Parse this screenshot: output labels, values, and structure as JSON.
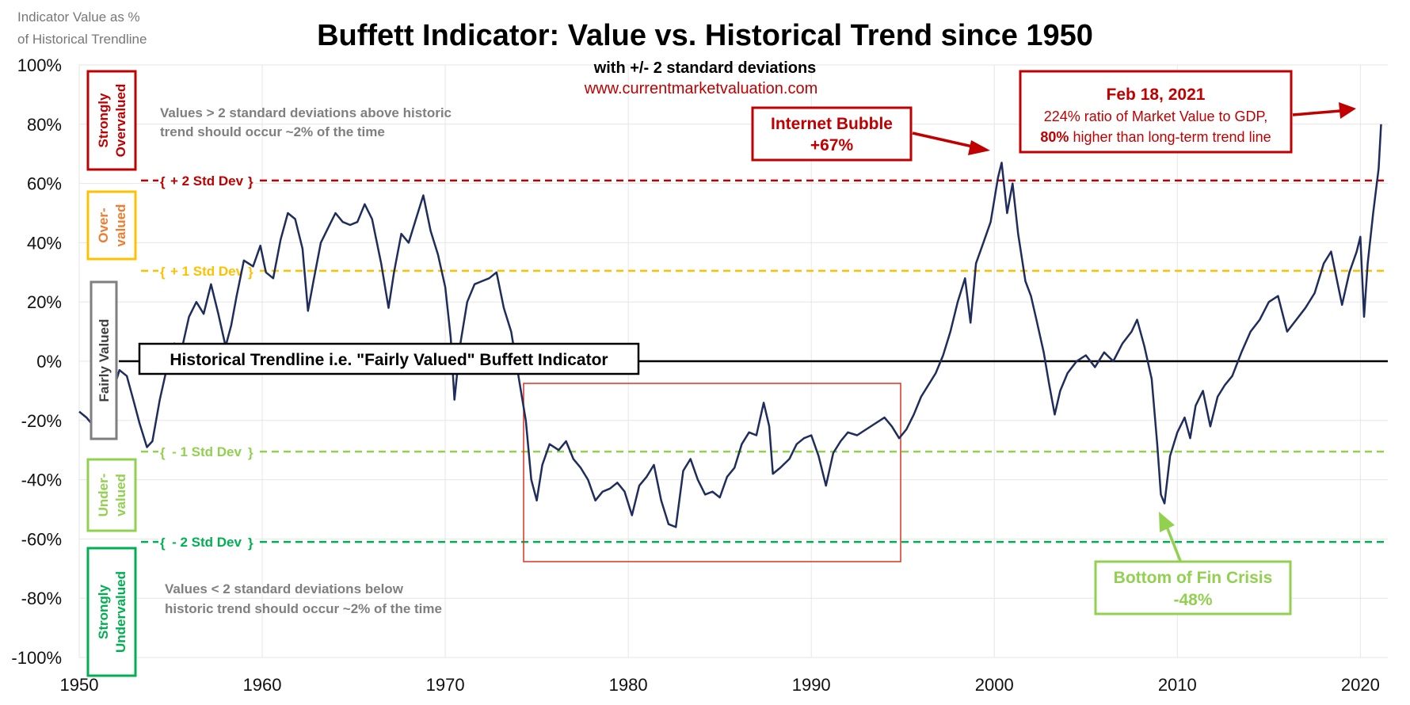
{
  "title": "Buffett Indicator: Value vs. Historical Trend since 1950",
  "subtitle": "with +/- 2 standard deviations",
  "website": "www.currentmarketvaluation.com",
  "y_axis_title": [
    "Indicator Value as %",
    "of Historical Trendline"
  ],
  "notes": {
    "above": [
      "Values > 2 standard deviations above historic",
      "trend should occur ~2% of the time"
    ],
    "below": [
      "Values < 2 standard deviations below",
      "historic trend should occur ~2% of the time"
    ]
  },
  "std_lines": [
    {
      "label": "+ 2 Std Dev",
      "value": 61,
      "color": "#c00000"
    },
    {
      "label": "+ 1 Std Dev",
      "value": 30.5,
      "color": "#ffc000"
    },
    {
      "label": "- 1 Std Dev",
      "value": -30.5,
      "color": "#92d050"
    },
    {
      "label": "- 2 Std Dev",
      "value": -61,
      "color": "#00b050"
    }
  ],
  "zones": [
    {
      "label": [
        "Strongly",
        "Overvalued"
      ],
      "color": "#c00000"
    },
    {
      "label": [
        "Over-",
        "valued"
      ],
      "color": "#ffc000",
      "text_color": "#ed7d31"
    },
    {
      "label": [
        "Fairly Valued"
      ],
      "color": "#7f7f7f",
      "text_color": "#404040"
    },
    {
      "label": [
        "Under-",
        "valued"
      ],
      "color": "#92d050"
    },
    {
      "label": [
        "Strongly",
        "Undervalued"
      ],
      "color": "#00b050"
    }
  ],
  "trendline_label": "Historical Trendline i.e. \"Fairly Valued\" Buffett Indicator",
  "callouts": {
    "internet": {
      "title": "Internet Bubble",
      "value": "+67%",
      "color": "#c00000"
    },
    "feb2021": {
      "title": "Feb 18, 2021",
      "line1": "224% ratio of Market Value to GDP,",
      "bold": "80%",
      "line2": " higher than long-term trend line",
      "color": "#c00000"
    },
    "fincrisis": {
      "title": "Bottom of Fin Crisis",
      "value": "-48%",
      "color": "#92d050"
    }
  },
  "colors": {
    "series": "#1f2d5c",
    "grid": "#e6e6e6",
    "highlight_box": "#e03020"
  },
  "chart_data": {
    "type": "line",
    "title": "Buffett Indicator: Value vs. Historical Trend since 1950",
    "ylabel": "Indicator Value as % of Historical Trendline",
    "xlim": [
      1950,
      2021.5
    ],
    "ylim": [
      -100,
      100
    ],
    "x_ticks": [
      1950,
      1960,
      1970,
      1980,
      1990,
      2000,
      2010,
      2020
    ],
    "y_ticks": [
      "100%",
      "80%",
      "60%",
      "40%",
      "20%",
      "0%",
      "-20%",
      "-40%",
      "-60%",
      "-80%",
      "-100%"
    ],
    "grid": true,
    "series": [
      {
        "values": [
          [
            1950.0,
            -17
          ],
          [
            1950.4,
            -19
          ],
          [
            1950.8,
            -22
          ],
          [
            1951.1,
            -14
          ],
          [
            1951.5,
            -9
          ],
          [
            1951.8,
            -11
          ],
          [
            1952.2,
            -3
          ],
          [
            1952.6,
            -5
          ],
          [
            1953.0,
            -14
          ],
          [
            1953.3,
            -21
          ],
          [
            1953.7,
            -29
          ],
          [
            1954.0,
            -27
          ],
          [
            1954.4,
            -13
          ],
          [
            1954.8,
            -2
          ],
          [
            1955.2,
            6
          ],
          [
            1955.6,
            4
          ],
          [
            1956.0,
            15
          ],
          [
            1956.4,
            20
          ],
          [
            1956.8,
            16
          ],
          [
            1957.2,
            26
          ],
          [
            1957.6,
            16
          ],
          [
            1958.0,
            5
          ],
          [
            1958.3,
            12
          ],
          [
            1958.6,
            22
          ],
          [
            1959.0,
            34
          ],
          [
            1959.5,
            32
          ],
          [
            1959.9,
            39
          ],
          [
            1960.2,
            30
          ],
          [
            1960.6,
            28
          ],
          [
            1961.0,
            41
          ],
          [
            1961.4,
            50
          ],
          [
            1961.8,
            48
          ],
          [
            1962.2,
            38
          ],
          [
            1962.5,
            17
          ],
          [
            1962.8,
            27
          ],
          [
            1963.2,
            40
          ],
          [
            1963.6,
            45
          ],
          [
            1964.0,
            50
          ],
          [
            1964.4,
            47
          ],
          [
            1964.8,
            46
          ],
          [
            1965.2,
            47
          ],
          [
            1965.6,
            53
          ],
          [
            1966.0,
            48
          ],
          [
            1966.5,
            33
          ],
          [
            1966.9,
            18
          ],
          [
            1967.2,
            30
          ],
          [
            1967.6,
            43
          ],
          [
            1968.0,
            40
          ],
          [
            1968.4,
            48
          ],
          [
            1968.8,
            56
          ],
          [
            1969.2,
            44
          ],
          [
            1969.6,
            36
          ],
          [
            1970.0,
            25
          ],
          [
            1970.3,
            8
          ],
          [
            1970.5,
            -13
          ],
          [
            1970.8,
            5
          ],
          [
            1971.2,
            20
          ],
          [
            1971.6,
            26
          ],
          [
            1972.0,
            27
          ],
          [
            1972.4,
            28
          ],
          [
            1972.8,
            30
          ],
          [
            1973.2,
            18
          ],
          [
            1973.6,
            10
          ],
          [
            1974.0,
            -5
          ],
          [
            1974.4,
            -20
          ],
          [
            1974.7,
            -40
          ],
          [
            1975.0,
            -47
          ],
          [
            1975.3,
            -35
          ],
          [
            1975.7,
            -28
          ],
          [
            1976.2,
            -30
          ],
          [
            1976.6,
            -27
          ],
          [
            1977.0,
            -33
          ],
          [
            1977.4,
            -36
          ],
          [
            1977.8,
            -40
          ],
          [
            1978.2,
            -47
          ],
          [
            1978.6,
            -44
          ],
          [
            1979.0,
            -43
          ],
          [
            1979.4,
            -41
          ],
          [
            1979.8,
            -44
          ],
          [
            1980.2,
            -52
          ],
          [
            1980.6,
            -42
          ],
          [
            1981.0,
            -39
          ],
          [
            1981.4,
            -35
          ],
          [
            1981.8,
            -47
          ],
          [
            1982.2,
            -55
          ],
          [
            1982.6,
            -56
          ],
          [
            1983.0,
            -37
          ],
          [
            1983.4,
            -33
          ],
          [
            1983.8,
            -40
          ],
          [
            1984.2,
            -45
          ],
          [
            1984.6,
            -44
          ],
          [
            1985.0,
            -46
          ],
          [
            1985.4,
            -39
          ],
          [
            1985.8,
            -36
          ],
          [
            1986.2,
            -28
          ],
          [
            1986.6,
            -24
          ],
          [
            1987.0,
            -25
          ],
          [
            1987.4,
            -14
          ],
          [
            1987.7,
            -22
          ],
          [
            1987.9,
            -38
          ],
          [
            1988.3,
            -36
          ],
          [
            1988.8,
            -33
          ],
          [
            1989.2,
            -28
          ],
          [
            1989.6,
            -26
          ],
          [
            1990.0,
            -25
          ],
          [
            1990.4,
            -32
          ],
          [
            1990.8,
            -42
          ],
          [
            1991.2,
            -31
          ],
          [
            1991.6,
            -27
          ],
          [
            1992.0,
            -24
          ],
          [
            1992.5,
            -25
          ],
          [
            1993.0,
            -23
          ],
          [
            1993.5,
            -21
          ],
          [
            1994.0,
            -19
          ],
          [
            1994.4,
            -22
          ],
          [
            1994.8,
            -26
          ],
          [
            1995.2,
            -23
          ],
          [
            1995.6,
            -18
          ],
          [
            1996.0,
            -12
          ],
          [
            1996.4,
            -8
          ],
          [
            1996.8,
            -4
          ],
          [
            1997.2,
            2
          ],
          [
            1997.6,
            10
          ],
          [
            1998.0,
            20
          ],
          [
            1998.4,
            28
          ],
          [
            1998.7,
            13
          ],
          [
            1999.0,
            33
          ],
          [
            1999.4,
            40
          ],
          [
            1999.8,
            47
          ],
          [
            2000.2,
            62
          ],
          [
            2000.4,
            67
          ],
          [
            2000.7,
            50
          ],
          [
            2001.0,
            60
          ],
          [
            2001.3,
            43
          ],
          [
            2001.7,
            27
          ],
          [
            2002.0,
            22
          ],
          [
            2002.3,
            14
          ],
          [
            2002.7,
            3
          ],
          [
            2003.0,
            -8
          ],
          [
            2003.3,
            -18
          ],
          [
            2003.6,
            -10
          ],
          [
            2004.0,
            -4
          ],
          [
            2004.5,
            0
          ],
          [
            2005.0,
            2
          ],
          [
            2005.5,
            -2
          ],
          [
            2006.0,
            3
          ],
          [
            2006.5,
            0
          ],
          [
            2007.0,
            6
          ],
          [
            2007.5,
            10
          ],
          [
            2007.8,
            14
          ],
          [
            2008.2,
            5
          ],
          [
            2008.6,
            -6
          ],
          [
            2008.9,
            -28
          ],
          [
            2009.1,
            -45
          ],
          [
            2009.3,
            -48
          ],
          [
            2009.6,
            -32
          ],
          [
            2010.0,
            -24
          ],
          [
            2010.4,
            -19
          ],
          [
            2010.7,
            -26
          ],
          [
            2011.0,
            -15
          ],
          [
            2011.4,
            -10
          ],
          [
            2011.8,
            -22
          ],
          [
            2012.2,
            -12
          ],
          [
            2012.6,
            -8
          ],
          [
            2013.0,
            -5
          ],
          [
            2013.5,
            3
          ],
          [
            2014.0,
            10
          ],
          [
            2014.5,
            14
          ],
          [
            2015.0,
            20
          ],
          [
            2015.5,
            22
          ],
          [
            2016.0,
            10
          ],
          [
            2016.5,
            14
          ],
          [
            2017.0,
            18
          ],
          [
            2017.5,
            23
          ],
          [
            2018.0,
            33
          ],
          [
            2018.4,
            37
          ],
          [
            2018.8,
            25
          ],
          [
            2019.0,
            19
          ],
          [
            2019.4,
            30
          ],
          [
            2019.8,
            37
          ],
          [
            2020.0,
            42
          ],
          [
            2020.2,
            15
          ],
          [
            2020.4,
            33
          ],
          [
            2020.7,
            50
          ],
          [
            2021.0,
            65
          ],
          [
            2021.13,
            80
          ]
        ]
      }
    ]
  }
}
